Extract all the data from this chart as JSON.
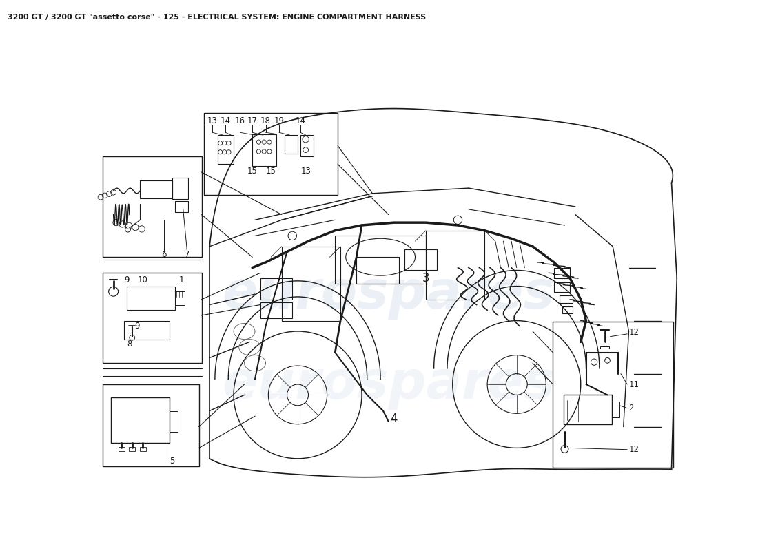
{
  "title": "3200 GT / 3200 GT \"assetto corse\" - 125 - ELECTRICAL SYSTEM: ENGINE COMPARTMENT HARNESS",
  "title_fontsize": 8,
  "bg_color": "#ffffff",
  "watermark_text": "eurospares",
  "watermark_color": "#c8d4e8",
  "watermark_alpha": 0.35,
  "line_color": "#1a1a1a",
  "fig_w": 11.0,
  "fig_h": 8.0,
  "dpi": 100
}
